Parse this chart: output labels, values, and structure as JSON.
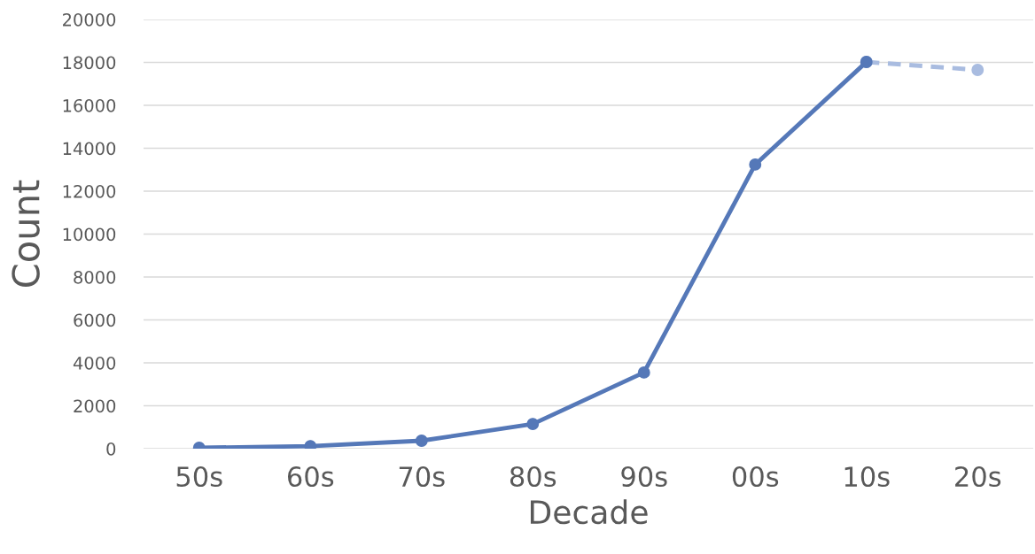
{
  "chart_data": {
    "type": "line",
    "xlabel": "Decade",
    "ylabel": "Count",
    "categories": [
      "50s",
      "60s",
      "70s",
      "80s",
      "90s",
      "00s",
      "10s",
      "20s"
    ],
    "series": [
      {
        "color": "#5578b8",
        "values": [
          40,
          120,
          370,
          1150,
          3550,
          13240,
          18020,
          null
        ],
        "line_style": "solid"
      },
      {
        "color": "#a9bce0",
        "values": [
          null,
          null,
          null,
          null,
          null,
          null,
          18020,
          17650
        ],
        "line_style": "dashed"
      }
    ],
    "ylim": [
      0,
      20000
    ],
    "yticks": [
      0,
      2000,
      4000,
      6000,
      8000,
      10000,
      12000,
      14000,
      16000,
      18000,
      20000
    ],
    "grid": "y",
    "marker": "circle",
    "legend": false
  }
}
